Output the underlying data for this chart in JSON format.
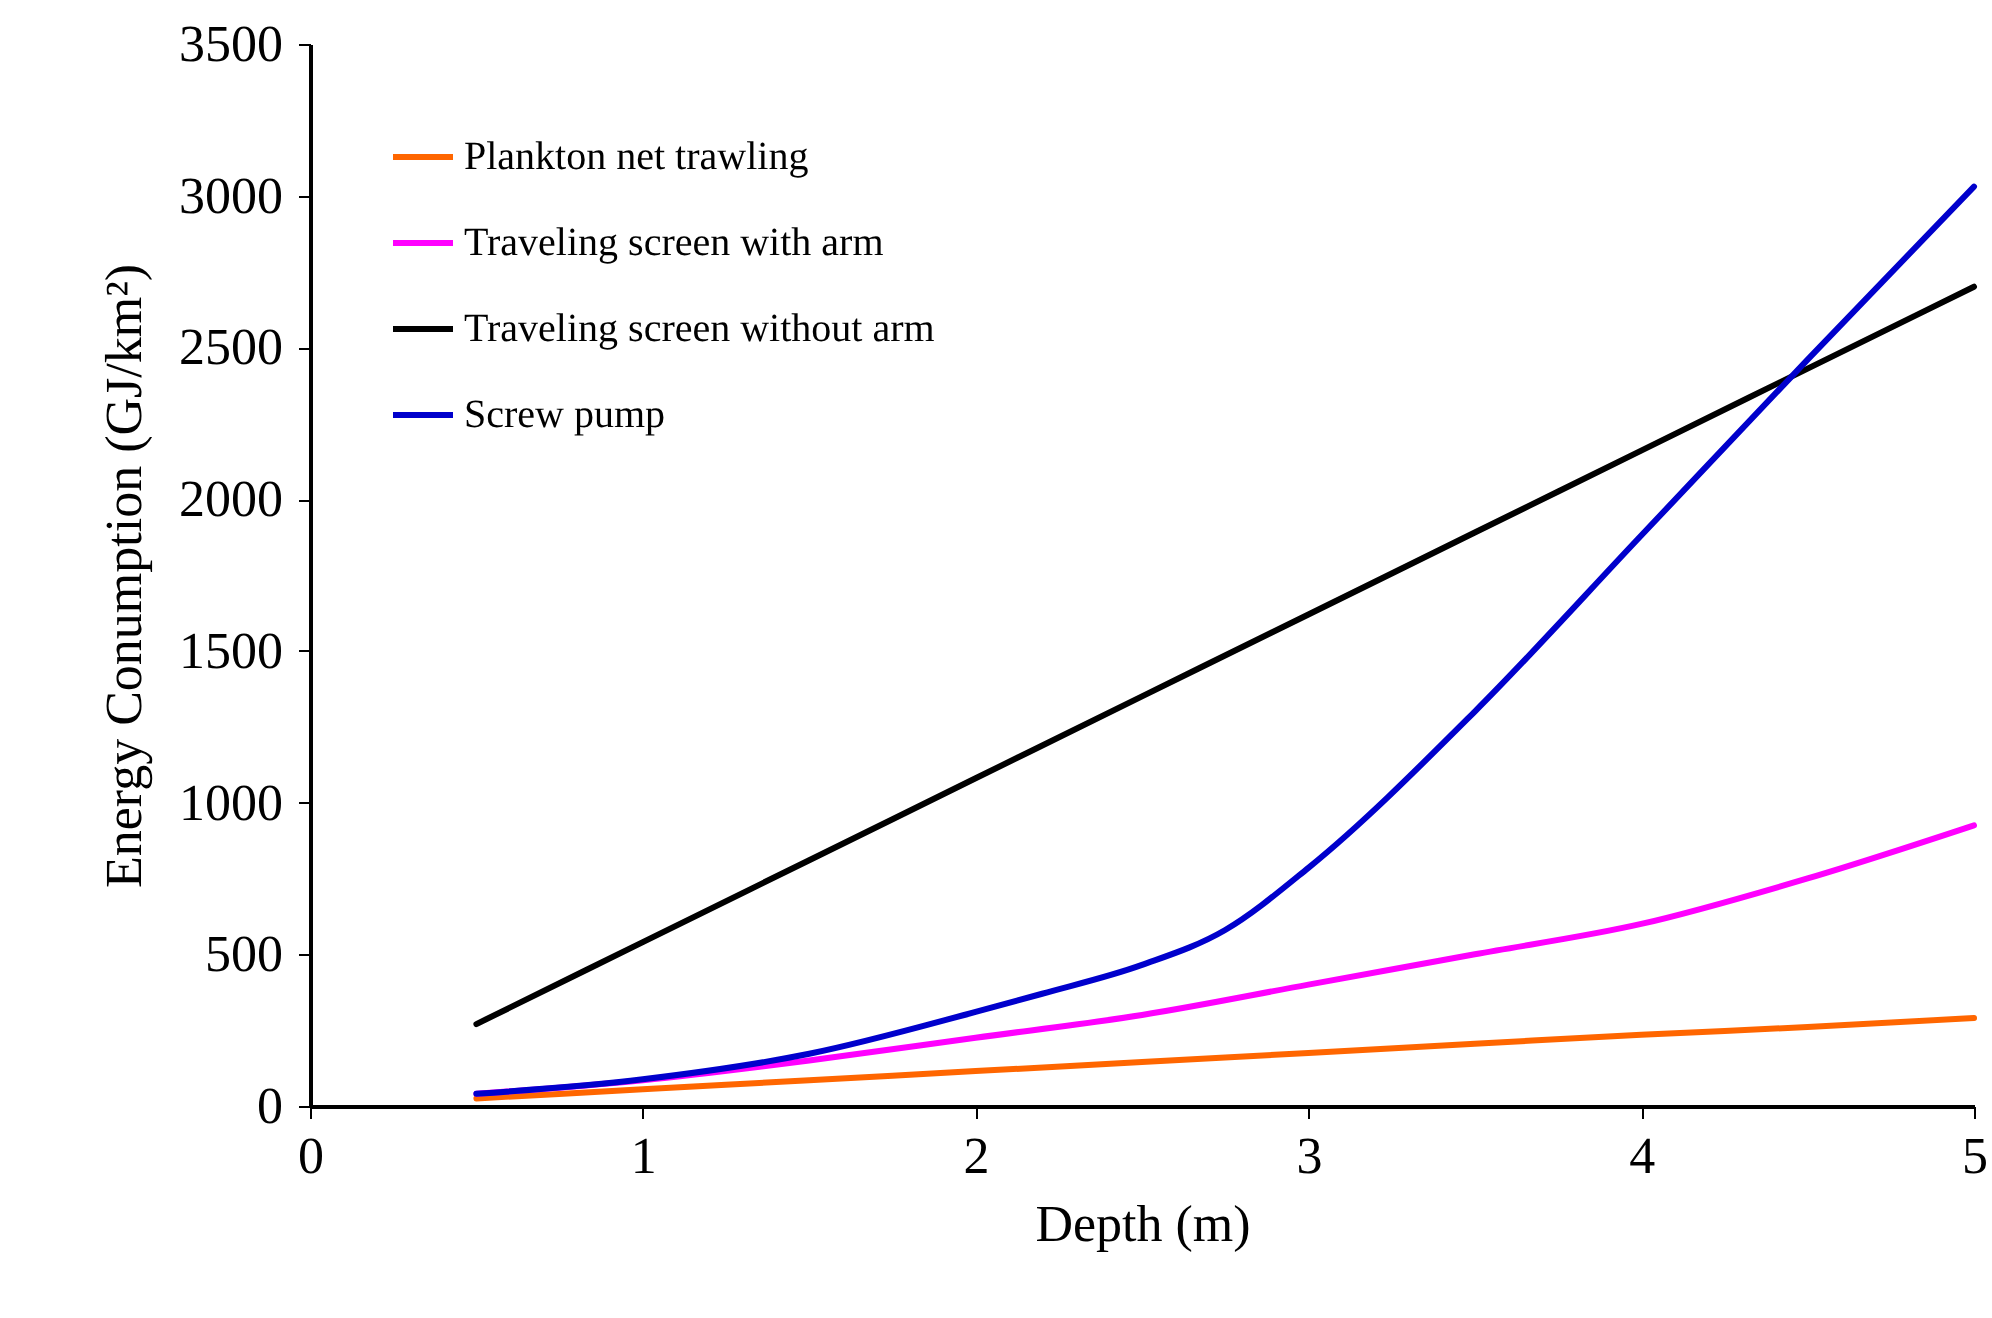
{
  "chart_data": {
    "type": "line",
    "xlabel": "Depth (m)",
    "ylabel": "Energy Conumption (GJ/km²)",
    "x": [
      0.5,
      1,
      1.5,
      2,
      2.5,
      3,
      3.5,
      4,
      4.5,
      5
    ],
    "series": [
      {
        "name": "Plankton net trawling",
        "color": "#ff6600",
        "values": [
          25,
          55,
          85,
          115,
          145,
          175,
          205,
          235,
          260,
          290
        ]
      },
      {
        "name": "Traveling screen with arm",
        "color": "#ff00ff",
        "values": [
          40,
          85,
          150,
          225,
          300,
          400,
          500,
          600,
          750,
          925
        ]
      },
      {
        "name": "Traveling screen without arm",
        "color": "#000000",
        "values": [
          270,
          540,
          810,
          1080,
          1350,
          1620,
          1890,
          2160,
          2430,
          2700
        ]
      },
      {
        "name": "Screw pump",
        "color": "#0000cc",
        "x": [
          0.5,
          1,
          1.5,
          2,
          2.2,
          2.5,
          2.75,
          3,
          3.5,
          4,
          4.5,
          5
        ],
        "values": [
          40,
          88,
          172,
          310,
          370,
          465,
          580,
          785,
          1300,
          1880,
          2460,
          3030
        ]
      }
    ],
    "xlim": [
      0,
      5
    ],
    "xticks": [
      0,
      1,
      2,
      3,
      4,
      5
    ],
    "ylim": [
      0,
      3500
    ],
    "yticks": [
      0,
      500,
      1000,
      1500,
      2000,
      2500,
      3000,
      3500
    ],
    "grid": false,
    "legend": "top left",
    "marker": "none",
    "line_style": "solid"
  }
}
